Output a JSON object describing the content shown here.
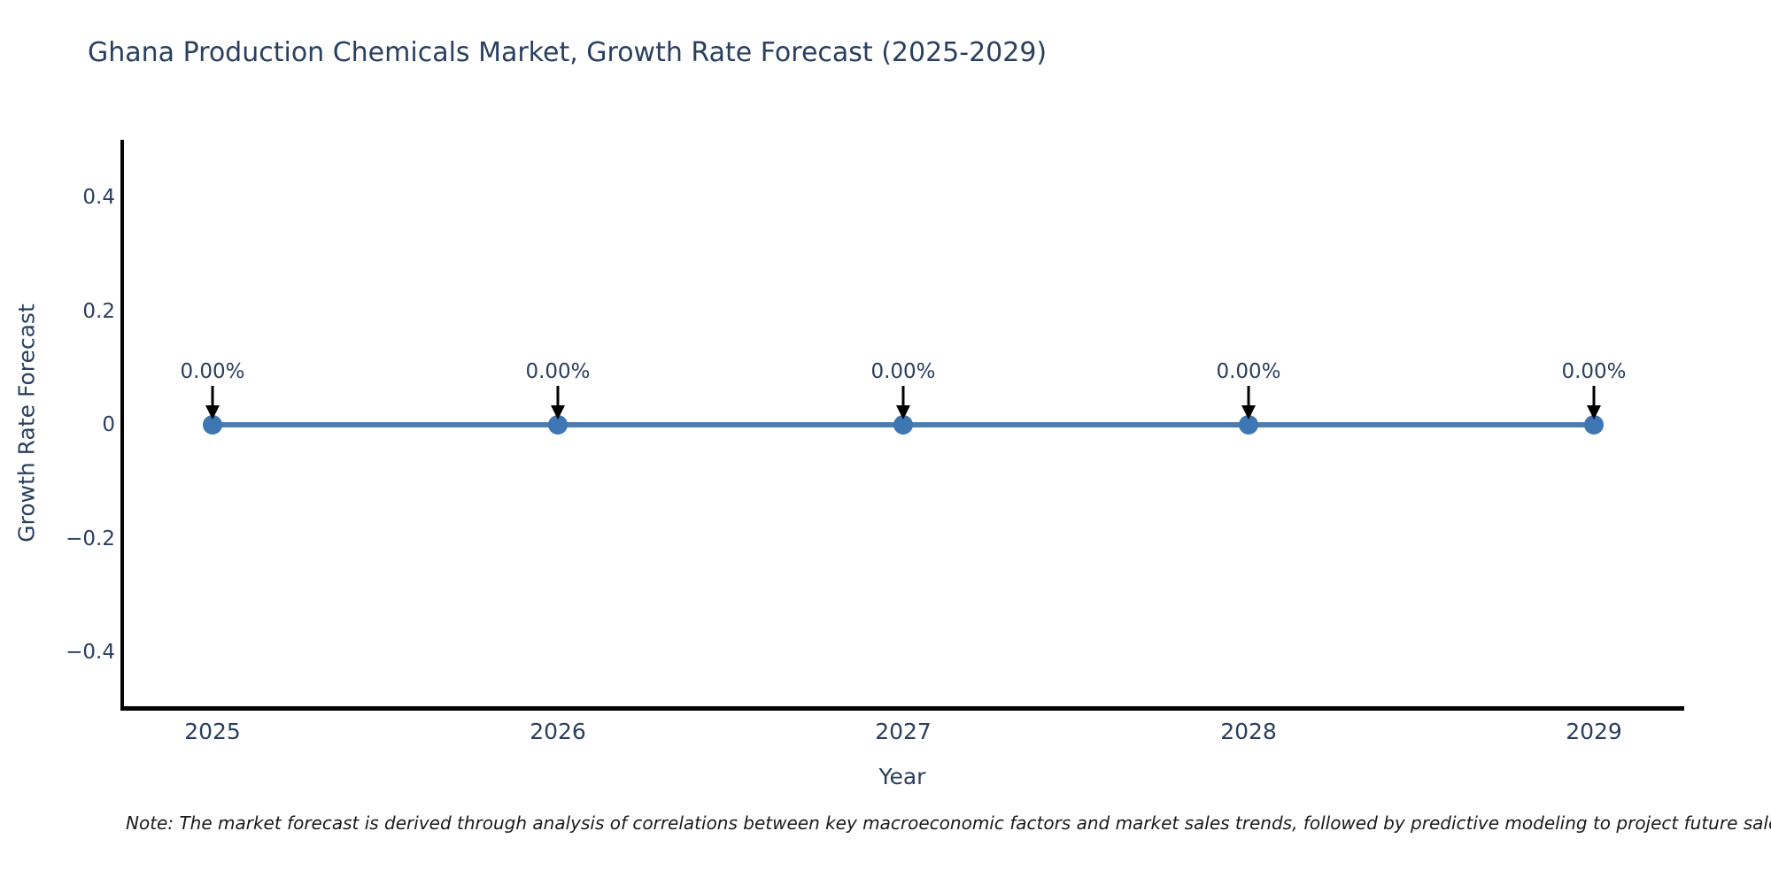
{
  "header": {
    "title": "Ghana Production Chemicals Market, Growth Rate Forecast (2025-2029)"
  },
  "chart_data": {
    "type": "line",
    "title": "Ghana Production Chemicals Market, Growth Rate Forecast (2025-2029)",
    "categories": [
      "2025",
      "2026",
      "2027",
      "2028",
      "2029"
    ],
    "series": [
      {
        "name": "Growth Rate Forecast",
        "values": [
          0,
          0,
          0,
          0,
          0
        ],
        "data_labels": [
          "0.00%",
          "0.00%",
          "0.00%",
          "0.00%",
          "0.00%"
        ]
      }
    ],
    "xlabel": "Year",
    "ylabel": "Growth Rate Forecast",
    "ylim": [
      -0.5,
      0.5
    ],
    "yticks": {
      "labels": [
        "0.4",
        "0.2",
        "0",
        "−0.2",
        "−0.4"
      ],
      "values": [
        0.4,
        0.2,
        0,
        -0.2,
        -0.4
      ]
    },
    "grid": false,
    "legend_position": "none",
    "annotation_arrow": "down-arrow-icon",
    "colors": {
      "line": "#4e7dab",
      "marker": "#3d76b3",
      "axis": "#000000",
      "text": "#2a3f5f",
      "arrow": "#000000",
      "background": "#ffffff"
    }
  },
  "footer": {
    "note": "Note: The market forecast is derived through analysis of correlations between key macroeconomic factors and market sales trends, followed by predictive modeling to project future sales."
  }
}
